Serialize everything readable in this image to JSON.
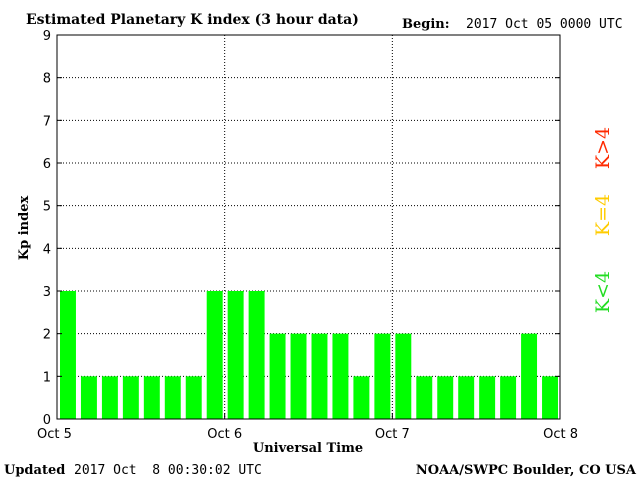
{
  "header": {
    "title": "Estimated Planetary K index (3 hour data)",
    "begin_label": "Begin:",
    "begin_value": "2017 Oct 05 0000 UTC"
  },
  "footer": {
    "updated_label": "Updated",
    "updated_value": "2017 Oct  8 00:30:02 UTC",
    "source": "NOAA/SWPC Boulder, CO USA"
  },
  "legend": [
    {
      "text": "K>4",
      "color": "#ff2a00"
    },
    {
      "text": "K=4",
      "color": "#ffcc00"
    },
    {
      "text": "K<4",
      "color": "#22dd22"
    }
  ],
  "chart_data": {
    "type": "bar",
    "title": "Estimated Planetary K index (3 hour data)",
    "xlabel": "Universal Time",
    "ylabel": "Kp index",
    "ylim": [
      0,
      9
    ],
    "yticks": [
      "0",
      "1",
      "2",
      "3",
      "4",
      "5",
      "6",
      "7",
      "8",
      "9"
    ],
    "xticks": [
      "Oct 5",
      "Oct 6",
      "Oct 7",
      "Oct 8"
    ],
    "grid": true,
    "bar_color": "#00ff00",
    "categories": [
      "Oct 5 00",
      "Oct 5 03",
      "Oct 5 06",
      "Oct 5 09",
      "Oct 5 12",
      "Oct 5 15",
      "Oct 5 18",
      "Oct 5 21",
      "Oct 6 00",
      "Oct 6 03",
      "Oct 6 06",
      "Oct 6 09",
      "Oct 6 12",
      "Oct 6 15",
      "Oct 6 18",
      "Oct 6 21",
      "Oct 7 00",
      "Oct 7 03",
      "Oct 7 06",
      "Oct 7 09",
      "Oct 7 12",
      "Oct 7 15",
      "Oct 7 18",
      "Oct 7 21"
    ],
    "values": [
      3,
      1,
      1,
      1,
      1,
      1,
      1,
      3,
      3,
      3,
      2,
      2,
      2,
      2,
      1,
      2,
      2,
      1,
      1,
      1,
      1,
      1,
      2,
      1
    ]
  }
}
